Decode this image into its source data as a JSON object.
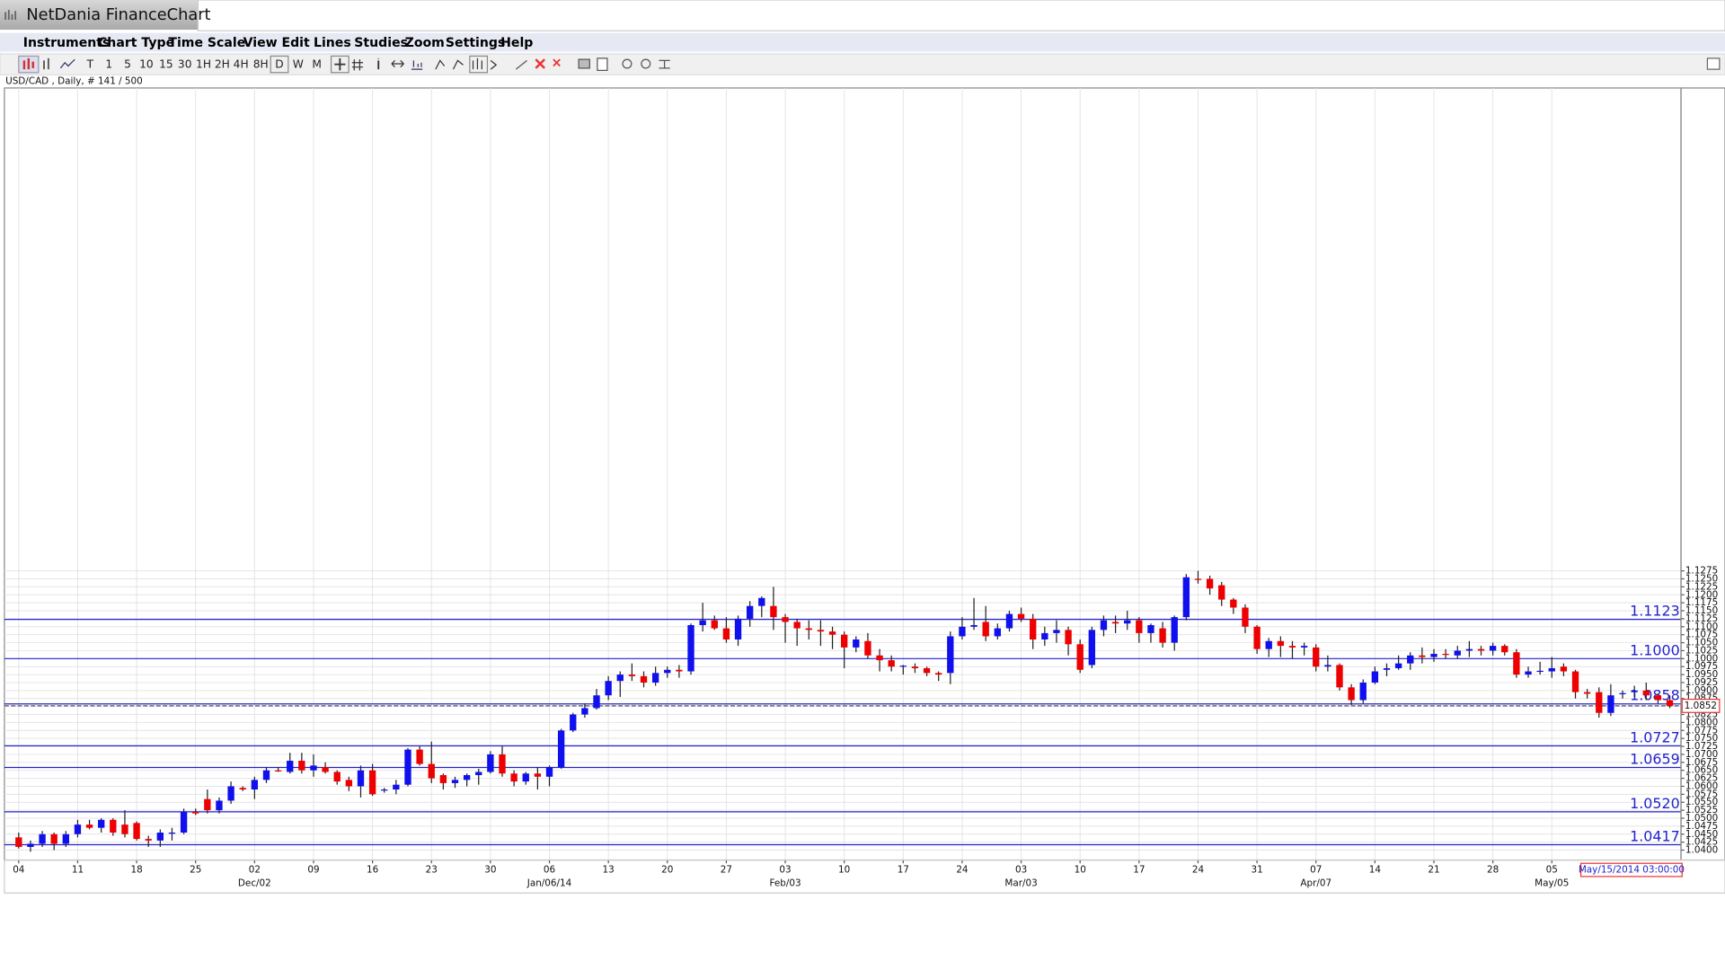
{
  "window_title": "NetDania FinanceChart",
  "menu": [
    "Instruments",
    "Chart Type",
    "Time Scale",
    "View",
    "Edit",
    "Lines",
    "Studies",
    "Zoom",
    "Settings",
    "Help"
  ],
  "toolbar_timeframes": [
    "T",
    "1",
    "5",
    "10",
    "15",
    "30",
    "1H",
    "2H",
    "4H",
    "8H",
    "D",
    "W",
    "M"
  ],
  "chart_data": {
    "type": "candlestick",
    "info": "USD/CAD , Daily, # 141 / 500",
    "cursor_date": "May/15/2014 03:00:00",
    "up_color": "#1010ee",
    "down_color": "#ee0000",
    "grid": true,
    "x": [
      "04",
      null,
      null,
      null,
      null,
      "11",
      null,
      null,
      null,
      null,
      "18",
      null,
      null,
      null,
      null,
      "25",
      null,
      null,
      null,
      null,
      "02",
      null,
      null,
      null,
      null,
      "09",
      null,
      null,
      null,
      null,
      "16",
      null,
      null,
      null,
      null,
      "23",
      null,
      null,
      null,
      null,
      "30",
      null,
      null,
      null,
      null,
      "06",
      null,
      null,
      null,
      null,
      "13",
      null,
      null,
      null,
      null,
      "20",
      null,
      null,
      null,
      null,
      "27",
      null,
      null,
      null,
      null,
      "03",
      null,
      null,
      null,
      null,
      "10",
      null,
      null,
      null,
      null,
      "17",
      null,
      null,
      null,
      null,
      "24",
      null,
      null,
      null,
      null,
      "03",
      null,
      null,
      null,
      null,
      "10",
      null,
      null,
      null,
      null,
      "17",
      null,
      null,
      null,
      null,
      "24",
      null,
      null,
      null,
      null,
      "31",
      null,
      null,
      null,
      null,
      "07",
      null,
      null,
      null,
      null,
      "14",
      null,
      null,
      null,
      null,
      "21",
      null,
      null,
      null,
      null,
      "28",
      null,
      null,
      null,
      null,
      "05",
      null,
      null,
      null,
      null,
      null,
      null,
      null,
      null,
      null,
      null
    ],
    "x_month": [
      null,
      null,
      null,
      null,
      null,
      null,
      null,
      null,
      null,
      null,
      null,
      null,
      null,
      null,
      null,
      null,
      null,
      null,
      null,
      null,
      "Dec/02",
      null,
      null,
      null,
      null,
      null,
      null,
      null,
      null,
      null,
      null,
      null,
      null,
      null,
      null,
      null,
      null,
      null,
      null,
      null,
      null,
      null,
      null,
      null,
      null,
      "Jan/06/14",
      null,
      null,
      null,
      null,
      null,
      null,
      null,
      null,
      null,
      null,
      null,
      null,
      null,
      null,
      null,
      null,
      null,
      null,
      null,
      "Feb/03",
      null,
      null,
      null,
      null,
      null,
      null,
      null,
      null,
      null,
      null,
      null,
      null,
      null,
      null,
      null,
      null,
      null,
      null,
      null,
      "Mar/03",
      null,
      null,
      null,
      null,
      null,
      null,
      null,
      null,
      null,
      null,
      null,
      null,
      null,
      null,
      null,
      null,
      null,
      null,
      null,
      null,
      null,
      null,
      null,
      null,
      "Apr/07",
      null,
      null,
      null,
      null,
      null,
      null,
      null,
      null,
      null,
      null,
      null,
      null,
      null,
      null,
      null,
      null,
      null,
      null,
      null,
      "May/05",
      null,
      null,
      null,
      null,
      null,
      null,
      null,
      null,
      null,
      null
    ],
    "open": [
      1.044,
      1.041,
      1.042,
      1.045,
      1.042,
      1.045,
      1.048,
      1.047,
      1.0495,
      1.048,
      1.0485,
      1.0435,
      1.043,
      1.0455,
      1.0455,
      1.052,
      1.056,
      1.0525,
      1.0555,
      1.0595,
      1.059,
      1.062,
      1.065,
      1.0645,
      1.068,
      1.065,
      1.066,
      1.0645,
      1.062,
      1.06,
      1.065,
      1.059,
      1.059,
      1.0605,
      1.0715,
      1.067,
      1.0635,
      1.061,
      1.062,
      1.0635,
      1.0645,
      1.07,
      1.064,
      1.0615,
      1.064,
      1.063,
      1.066,
      1.0775,
      1.0825,
      1.0845,
      1.0885,
      1.093,
      1.095,
      1.0945,
      1.0925,
      1.0955,
      1.0965,
      1.096,
      1.1105,
      1.112,
      1.1095,
      1.106,
      1.1125,
      1.1165,
      1.1165,
      1.113,
      1.1115,
      1.1095,
      1.109,
      1.1085,
      1.1075,
      1.1035,
      1.1055,
      1.101,
      1.0995,
      1.0975,
      1.0975,
      1.097,
      1.0955,
      1.0955,
      1.107,
      1.11,
      1.1115,
      1.107,
      1.1095,
      1.114,
      1.1125,
      1.106,
      1.108,
      1.109,
      1.1045,
      1.098,
      1.109,
      1.1115,
      1.111,
      1.112,
      1.108,
      1.1095,
      1.105,
      1.113,
      1.125,
      1.125,
      1.123,
      1.1185,
      1.116,
      1.11,
      1.103,
      1.1055,
      1.104,
      1.1035,
      1.1035,
      1.0975,
      1.098,
      1.091,
      1.087,
      1.0925,
      1.0965,
      1.097,
      1.0985,
      1.101,
      1.1005,
      1.1015,
      1.101,
      1.1025,
      1.103,
      1.1025,
      1.104,
      1.102,
      1.095,
      1.096,
      1.096,
      1.0975,
      1.096,
      1.0895,
      1.0895,
      1.083,
      1.089,
      1.0895,
      1.09,
      1.0885,
      1.087
    ],
    "high": [
      1.0455,
      1.043,
      1.046,
      1.0455,
      1.046,
      1.0495,
      1.0495,
      1.05,
      1.05,
      1.0525,
      1.049,
      1.0445,
      1.0465,
      1.047,
      1.053,
      1.053,
      1.059,
      1.0565,
      1.0615,
      1.06,
      1.063,
      1.066,
      1.066,
      1.0705,
      1.0705,
      1.07,
      1.0675,
      1.065,
      1.063,
      1.0665,
      1.067,
      1.0595,
      1.062,
      1.072,
      1.0725,
      1.074,
      1.064,
      1.063,
      1.064,
      1.0655,
      1.071,
      1.0725,
      1.065,
      1.0645,
      1.066,
      1.0665,
      1.078,
      1.083,
      1.086,
      1.0905,
      1.0945,
      1.096,
      1.0985,
      1.096,
      1.0975,
      1.0975,
      1.098,
      1.111,
      1.1175,
      1.1135,
      1.113,
      1.1135,
      1.118,
      1.1195,
      1.1225,
      1.114,
      1.1125,
      1.112,
      1.112,
      1.11,
      1.1085,
      1.107,
      1.108,
      1.103,
      1.101,
      1.098,
      1.0985,
      1.0975,
      1.096,
      1.1085,
      1.113,
      1.119,
      1.1165,
      1.111,
      1.115,
      1.116,
      1.114,
      1.11,
      1.112,
      1.11,
      1.106,
      1.11,
      1.1135,
      1.1135,
      1.115,
      1.113,
      1.111,
      1.1115,
      1.1135,
      1.1265,
      1.1275,
      1.126,
      1.124,
      1.119,
      1.117,
      1.1105,
      1.1065,
      1.107,
      1.1055,
      1.105,
      1.1045,
      1.101,
      1.0985,
      1.092,
      1.0935,
      1.0975,
      1.0985,
      1.101,
      1.102,
      1.1035,
      1.103,
      1.103,
      1.104,
      1.1055,
      1.104,
      1.105,
      1.1045,
      1.103,
      1.0975,
      1.099,
      1.1005,
      1.0985,
      1.0965,
      1.0905,
      1.091,
      1.092,
      1.09,
      1.0915,
      1.0925,
      1.089,
      1.0885
    ],
    "low": [
      1.0405,
      1.0395,
      1.041,
      1.04,
      1.041,
      1.044,
      1.0465,
      1.0455,
      1.0445,
      1.044,
      1.043,
      1.041,
      1.041,
      1.043,
      1.045,
      1.051,
      1.0515,
      1.0515,
      1.0545,
      1.0585,
      1.056,
      1.061,
      1.0645,
      1.064,
      1.064,
      1.063,
      1.064,
      1.0605,
      1.0585,
      1.0565,
      1.057,
      1.058,
      1.0575,
      1.06,
      1.0665,
      1.061,
      1.059,
      1.0595,
      1.06,
      1.0605,
      1.064,
      1.063,
      1.06,
      1.0605,
      1.059,
      1.06,
      1.0655,
      1.077,
      1.0815,
      1.084,
      1.087,
      1.088,
      1.093,
      1.091,
      1.0915,
      1.094,
      1.094,
      1.095,
      1.1085,
      1.109,
      1.105,
      1.104,
      1.11,
      1.113,
      1.109,
      1.105,
      1.104,
      1.106,
      1.104,
      1.103,
      1.097,
      1.102,
      1.1,
      1.096,
      1.096,
      1.095,
      1.0955,
      1.0945,
      1.093,
      1.092,
      1.106,
      1.109,
      1.1055,
      1.106,
      1.1085,
      1.1115,
      1.103,
      1.104,
      1.105,
      1.101,
      1.0955,
      1.097,
      1.107,
      1.108,
      1.109,
      1.105,
      1.105,
      1.1035,
      1.1025,
      1.112,
      1.1235,
      1.12,
      1.1165,
      1.114,
      1.108,
      1.1015,
      1.1005,
      1.1005,
      1.1,
      1.101,
      1.096,
      1.096,
      1.09,
      1.0855,
      1.086,
      1.092,
      1.0945,
      1.0965,
      1.0965,
      1.0985,
      1.099,
      1.1,
      1.1,
      1.1005,
      1.101,
      1.101,
      1.101,
      1.094,
      1.094,
      1.095,
      1.094,
      1.0945,
      1.0875,
      1.0875,
      1.0815,
      1.082,
      1.0875,
      1.088,
      1.087,
      1.086,
      1.0845
    ],
    "close": [
      1.041,
      1.042,
      1.045,
      1.042,
      1.045,
      1.048,
      1.047,
      1.0495,
      1.0455,
      1.045,
      1.0435,
      1.043,
      1.0455,
      1.0455,
      1.052,
      1.0515,
      1.0525,
      1.0555,
      1.06,
      1.059,
      1.062,
      1.065,
      1.0648,
      1.068,
      1.065,
      1.0665,
      1.0645,
      1.0615,
      1.06,
      1.065,
      1.0575,
      1.059,
      1.0605,
      1.0715,
      1.067,
      1.0625,
      1.061,
      1.062,
      1.0635,
      1.0645,
      1.07,
      1.064,
      1.0615,
      1.064,
      1.063,
      1.066,
      1.0775,
      1.0825,
      1.0845,
      1.0885,
      1.093,
      1.095,
      1.0945,
      1.0925,
      1.0955,
      1.0965,
      1.096,
      1.1105,
      1.112,
      1.1095,
      1.106,
      1.1125,
      1.1165,
      1.119,
      1.113,
      1.1115,
      1.1095,
      1.109,
      1.1085,
      1.1075,
      1.1035,
      1.106,
      1.101,
      1.0995,
      1.0975,
      1.0978,
      1.097,
      1.0955,
      1.095,
      1.107,
      1.11,
      1.1105,
      1.107,
      1.1095,
      1.114,
      1.1125,
      1.106,
      1.108,
      1.109,
      1.1045,
      1.0965,
      1.109,
      1.112,
      1.111,
      1.112,
      1.108,
      1.1105,
      1.105,
      1.113,
      1.1255,
      1.1248,
      1.122,
      1.1185,
      1.116,
      1.11,
      1.103,
      1.1055,
      1.104,
      1.1035,
      1.104,
      1.0975,
      1.098,
      1.091,
      1.087,
      1.0925,
      1.096,
      1.097,
      1.0985,
      1.101,
      1.1005,
      1.1015,
      1.1012,
      1.1025,
      1.103,
      1.1025,
      1.104,
      1.102,
      1.095,
      1.096,
      1.0962,
      1.097,
      1.096,
      1.0895,
      1.089,
      1.083,
      1.0885,
      1.0892,
      1.09,
      1.0885,
      1.087,
      1.0852
    ],
    "ylim": [
      1.0369,
      1.2788
    ],
    "yticks": [
      {
        "value": 1.04,
        "label": "1.0400"
      },
      1.0425,
      {
        "value": 1.045,
        "label": "1.0450"
      },
      1.0475,
      {
        "value": 1.05,
        "label": "1.0500"
      },
      1.0525,
      {
        "value": 1.055,
        "label": "1.0550"
      },
      1.0575,
      {
        "value": 1.06,
        "label": "1.0600"
      },
      1.0625,
      {
        "value": 1.065,
        "label": "1.0650"
      },
      1.0675,
      {
        "value": 1.07,
        "label": "1.0700"
      },
      1.0725,
      {
        "value": 1.075,
        "label": "1.0750"
      },
      1.0775,
      {
        "value": 1.08,
        "label": "1.0800"
      },
      1.0825,
      {
        "value": 1.085,
        "label": "1.0850"
      },
      1.0875,
      {
        "value": 1.09,
        "label": "1.0900"
      },
      1.0925,
      {
        "value": 1.095,
        "label": "1.0950"
      },
      1.0975,
      {
        "value": 1.1,
        "label": "1.1000"
      },
      1.1025,
      {
        "value": 1.105,
        "label": "1.1050"
      },
      1.1075,
      {
        "value": 1.11,
        "label": "1.1100"
      },
      1.1125,
      {
        "value": 1.115,
        "label": "1.1150"
      },
      1.1175,
      {
        "value": 1.12,
        "label": "1.1200"
      },
      1.1225,
      {
        "value": 1.125,
        "label": "1.1250"
      },
      1.1275
    ],
    "levels_color": "#2222cc",
    "levels": [
      1.1123,
      {
        "value": 1.1,
        "label": "1.1000"
      },
      1.0858,
      1.0727,
      1.0659,
      {
        "value": 1.052,
        "label": "1.0520"
      },
      1.0417
    ],
    "last_price": 1.0852
  }
}
